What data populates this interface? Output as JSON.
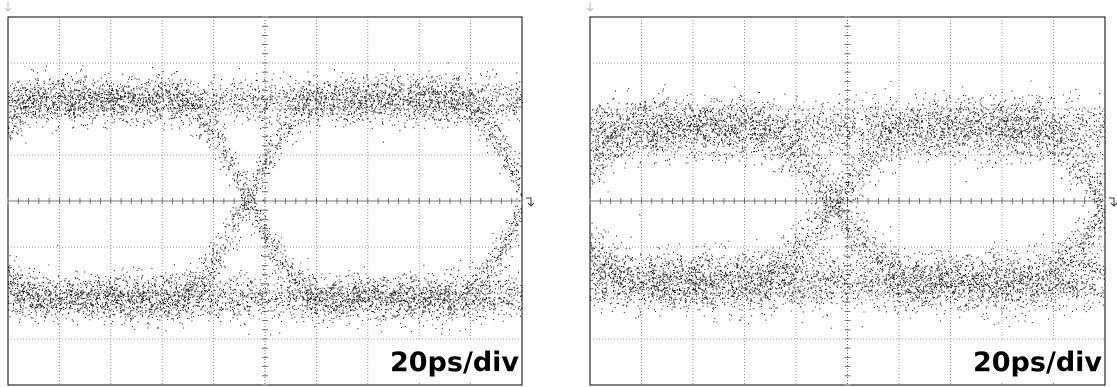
{
  "panels": [
    {
      "label": "20ps/div"
    },
    {
      "label": "20ps/div"
    }
  ]
}
